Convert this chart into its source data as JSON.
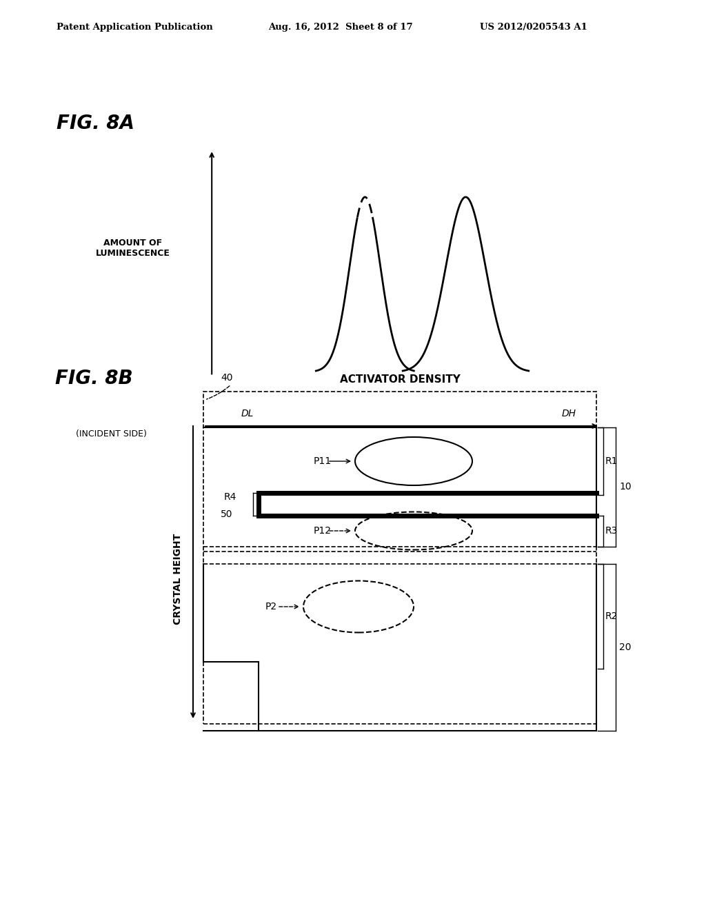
{
  "title_header": "Patent Application Publication",
  "date_header": "Aug. 16, 2012  Sheet 8 of 17",
  "patent_header": "US 2012/0205543 A1",
  "fig8a_label": "FIG. 8A",
  "fig8b_label": "FIG. 8B",
  "ylabel_8a": "AMOUNT OF\nLUMINESCENCE",
  "ylabel_8b": "CRYSTAL HEIGHT",
  "xlabel_density": "ACTIVATOR DENSITY",
  "label_DL": "DL",
  "label_DH": "DH",
  "label_incident": "(INCIDENT SIDE)",
  "label_40": "40",
  "label_50": "50",
  "label_10": "10",
  "label_20": "20",
  "label_P11": "P11",
  "label_P12": "P12",
  "label_P2": "P2",
  "label_R1": "R1",
  "label_R2": "R2",
  "label_R3": "R3",
  "label_R4": "R4",
  "bg_color": "#ffffff",
  "line_color": "#000000"
}
